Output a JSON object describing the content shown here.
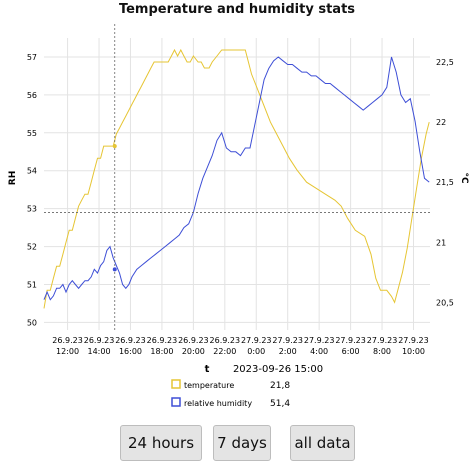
{
  "page": {
    "title": "Temperature and humidity stats"
  },
  "colors": {
    "temperature": "#e6c533",
    "humidity": "#3e4fd6",
    "grid": "#e3e3e3",
    "crosshair": "#666666",
    "button_bg": "#e4e4e4"
  },
  "buttons": {
    "day": "24 hours",
    "week": "7 days",
    "all": "all data"
  },
  "chart_data": {
    "type": "line",
    "title": "Temperature and humidity stats",
    "xlabel": "t",
    "ylabel_left": "RH",
    "ylabel_right": "°C",
    "x_ticks": [
      {
        "date": "26.9.23",
        "time": "12:00",
        "h": 12
      },
      {
        "date": "26.9.23",
        "time": "14:00",
        "h": 14
      },
      {
        "date": "26.9.23",
        "time": "16:00",
        "h": 16
      },
      {
        "date": "26.9.23",
        "time": "18:00",
        "h": 18
      },
      {
        "date": "26.9.23",
        "time": "20:00",
        "h": 20
      },
      {
        "date": "26.9.23",
        "time": "22:00",
        "h": 22
      },
      {
        "date": "27.9.23",
        "time": "0:00",
        "h": 24
      },
      {
        "date": "27.9.23",
        "time": "2:00",
        "h": 26
      },
      {
        "date": "27.9.23",
        "time": "4:00",
        "h": 28
      },
      {
        "date": "27.9.23",
        "time": "6:00",
        "h": 30
      },
      {
        "date": "27.9.23",
        "time": "8:00",
        "h": 32
      },
      {
        "date": "27.9.23",
        "time": "10:00",
        "h": 34
      }
    ],
    "xlim": [
      10.5,
      35.05
    ],
    "y_left": {
      "ticks": [
        50,
        51,
        52,
        53,
        54,
        55,
        56,
        57
      ],
      "lim": [
        49.8,
        57.5
      ]
    },
    "y_right": {
      "ticks": [
        20.5,
        21,
        21.5,
        22,
        22.5
      ],
      "lim": [
        20.27,
        22.7
      ]
    },
    "grid": true,
    "legend_position": "bottom-center",
    "tooltip": {
      "label": "2023-09-26 15:00",
      "x": 15,
      "series": [
        {
          "name": "temperature",
          "value": "21,8"
        },
        {
          "name": "relative humidity",
          "value": "51,4"
        }
      ]
    },
    "series": [
      {
        "name": "temperature",
        "axis": "right",
        "points": [
          [
            10.5,
            20.45
          ],
          [
            10.7,
            20.6
          ],
          [
            10.9,
            20.6
          ],
          [
            11.1,
            20.7
          ],
          [
            11.3,
            20.8
          ],
          [
            11.5,
            20.8
          ],
          [
            11.7,
            20.9
          ],
          [
            11.9,
            21.0
          ],
          [
            12.1,
            21.1
          ],
          [
            12.3,
            21.1
          ],
          [
            12.5,
            21.2
          ],
          [
            12.7,
            21.3
          ],
          [
            12.9,
            21.35
          ],
          [
            13.1,
            21.4
          ],
          [
            13.3,
            21.4
          ],
          [
            13.5,
            21.5
          ],
          [
            13.7,
            21.6
          ],
          [
            13.9,
            21.7
          ],
          [
            14.1,
            21.7
          ],
          [
            14.3,
            21.8
          ],
          [
            14.5,
            21.8
          ],
          [
            14.7,
            21.8
          ],
          [
            14.9,
            21.8
          ],
          [
            15.1,
            21.9
          ],
          [
            15.3,
            21.95
          ],
          [
            15.5,
            22.0
          ],
          [
            15.7,
            22.05
          ],
          [
            15.9,
            22.1
          ],
          [
            16.1,
            22.15
          ],
          [
            16.3,
            22.2
          ],
          [
            16.5,
            22.25
          ],
          [
            16.7,
            22.3
          ],
          [
            16.9,
            22.35
          ],
          [
            17.1,
            22.4
          ],
          [
            17.3,
            22.45
          ],
          [
            17.5,
            22.5
          ],
          [
            17.8,
            22.5
          ],
          [
            18.1,
            22.5
          ],
          [
            18.4,
            22.5
          ],
          [
            18.6,
            22.55
          ],
          [
            18.8,
            22.6
          ],
          [
            19.0,
            22.55
          ],
          [
            19.2,
            22.6
          ],
          [
            19.4,
            22.55
          ],
          [
            19.6,
            22.5
          ],
          [
            19.8,
            22.5
          ],
          [
            20.0,
            22.55
          ],
          [
            20.3,
            22.5
          ],
          [
            20.5,
            22.5
          ],
          [
            20.7,
            22.45
          ],
          [
            21.0,
            22.45
          ],
          [
            21.2,
            22.5
          ],
          [
            21.5,
            22.55
          ],
          [
            21.8,
            22.6
          ],
          [
            22.2,
            22.6
          ],
          [
            22.6,
            22.6
          ],
          [
            23.0,
            22.6
          ],
          [
            23.3,
            22.6
          ],
          [
            23.5,
            22.5
          ],
          [
            23.7,
            22.4
          ],
          [
            24.0,
            22.3
          ],
          [
            24.3,
            22.2
          ],
          [
            24.6,
            22.1
          ],
          [
            24.9,
            22.0
          ],
          [
            25.3,
            21.9
          ],
          [
            25.7,
            21.8
          ],
          [
            26.1,
            21.7
          ],
          [
            26.6,
            21.6
          ],
          [
            27.2,
            21.5
          ],
          [
            27.8,
            21.45
          ],
          [
            28.4,
            21.4
          ],
          [
            29.0,
            21.35
          ],
          [
            29.4,
            21.3
          ],
          [
            29.8,
            21.2
          ],
          [
            30.3,
            21.1
          ],
          [
            30.9,
            21.05
          ],
          [
            31.3,
            20.9
          ],
          [
            31.6,
            20.7
          ],
          [
            31.9,
            20.6
          ],
          [
            32.3,
            20.6
          ],
          [
            32.6,
            20.55
          ],
          [
            32.8,
            20.5
          ],
          [
            33.0,
            20.6
          ],
          [
            33.3,
            20.75
          ],
          [
            33.6,
            20.95
          ],
          [
            33.9,
            21.2
          ],
          [
            34.2,
            21.45
          ],
          [
            34.5,
            21.7
          ],
          [
            34.8,
            21.9
          ],
          [
            35.0,
            22.0
          ]
        ]
      },
      {
        "name": "relative humidity",
        "axis": "left",
        "points": [
          [
            10.5,
            50.6
          ],
          [
            10.7,
            50.8
          ],
          [
            10.9,
            50.6
          ],
          [
            11.1,
            50.7
          ],
          [
            11.3,
            50.9
          ],
          [
            11.5,
            50.9
          ],
          [
            11.7,
            51.0
          ],
          [
            11.9,
            50.8
          ],
          [
            12.1,
            51.0
          ],
          [
            12.3,
            51.1
          ],
          [
            12.5,
            51.0
          ],
          [
            12.7,
            50.9
          ],
          [
            12.9,
            51.0
          ],
          [
            13.1,
            51.1
          ],
          [
            13.3,
            51.1
          ],
          [
            13.5,
            51.2
          ],
          [
            13.7,
            51.4
          ],
          [
            13.9,
            51.3
          ],
          [
            14.1,
            51.5
          ],
          [
            14.3,
            51.6
          ],
          [
            14.5,
            51.9
          ],
          [
            14.7,
            52.0
          ],
          [
            14.9,
            51.7
          ],
          [
            15.1,
            51.5
          ],
          [
            15.3,
            51.3
          ],
          [
            15.5,
            51.0
          ],
          [
            15.7,
            50.9
          ],
          [
            15.9,
            51.0
          ],
          [
            16.1,
            51.2
          ],
          [
            16.4,
            51.4
          ],
          [
            16.7,
            51.5
          ],
          [
            17.0,
            51.6
          ],
          [
            17.3,
            51.7
          ],
          [
            17.6,
            51.8
          ],
          [
            17.9,
            51.9
          ],
          [
            18.2,
            52.0
          ],
          [
            18.5,
            52.1
          ],
          [
            18.8,
            52.2
          ],
          [
            19.1,
            52.3
          ],
          [
            19.4,
            52.5
          ],
          [
            19.7,
            52.6
          ],
          [
            20.0,
            52.9
          ],
          [
            20.3,
            53.4
          ],
          [
            20.6,
            53.8
          ],
          [
            20.9,
            54.1
          ],
          [
            21.2,
            54.4
          ],
          [
            21.5,
            54.8
          ],
          [
            21.8,
            55.0
          ],
          [
            22.1,
            54.6
          ],
          [
            22.4,
            54.5
          ],
          [
            22.7,
            54.5
          ],
          [
            23.0,
            54.4
          ],
          [
            23.3,
            54.6
          ],
          [
            23.6,
            54.6
          ],
          [
            23.9,
            55.2
          ],
          [
            24.2,
            55.8
          ],
          [
            24.5,
            56.4
          ],
          [
            24.8,
            56.7
          ],
          [
            25.1,
            56.9
          ],
          [
            25.4,
            57.0
          ],
          [
            25.7,
            56.9
          ],
          [
            26.0,
            56.8
          ],
          [
            26.3,
            56.8
          ],
          [
            26.6,
            56.7
          ],
          [
            26.9,
            56.6
          ],
          [
            27.2,
            56.6
          ],
          [
            27.5,
            56.5
          ],
          [
            27.8,
            56.5
          ],
          [
            28.1,
            56.4
          ],
          [
            28.4,
            56.3
          ],
          [
            28.7,
            56.3
          ],
          [
            29.0,
            56.2
          ],
          [
            29.3,
            56.1
          ],
          [
            29.6,
            56.0
          ],
          [
            29.9,
            55.9
          ],
          [
            30.2,
            55.8
          ],
          [
            30.5,
            55.7
          ],
          [
            30.8,
            55.6
          ],
          [
            31.1,
            55.7
          ],
          [
            31.4,
            55.8
          ],
          [
            31.7,
            55.9
          ],
          [
            32.0,
            56.0
          ],
          [
            32.3,
            56.2
          ],
          [
            32.6,
            57.0
          ],
          [
            32.9,
            56.6
          ],
          [
            33.2,
            56.0
          ],
          [
            33.5,
            55.8
          ],
          [
            33.8,
            55.9
          ],
          [
            34.1,
            55.3
          ],
          [
            34.4,
            54.5
          ],
          [
            34.7,
            53.8
          ],
          [
            35.0,
            53.7
          ]
        ]
      }
    ]
  }
}
